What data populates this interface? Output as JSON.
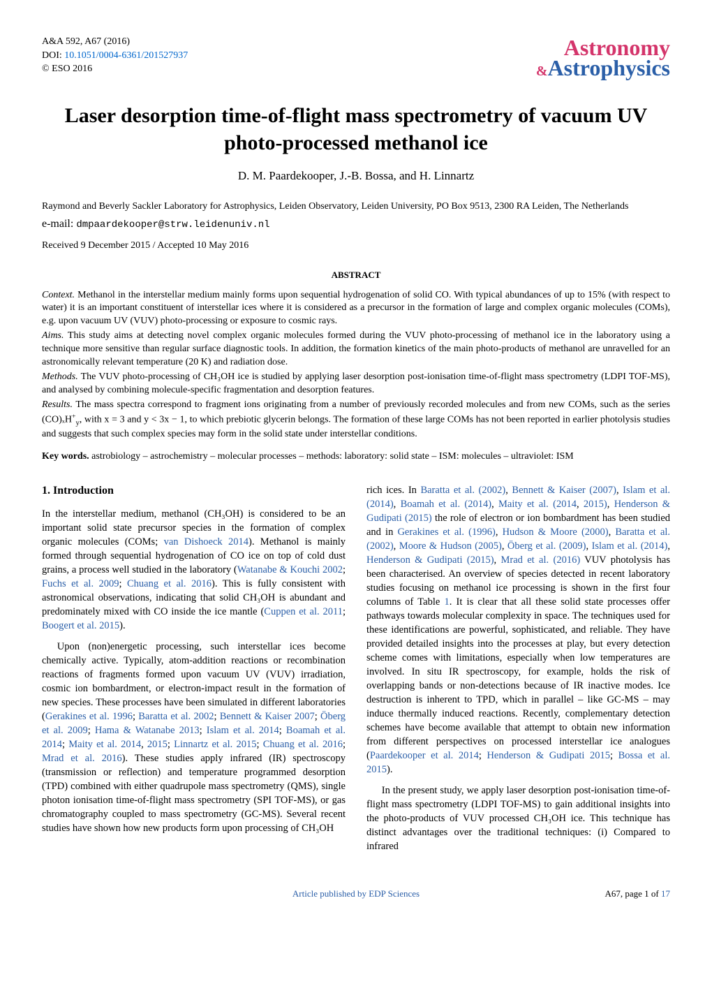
{
  "meta": {
    "journal_ref": "A&A 592, A67 (2016)",
    "doi_label": "DOI:",
    "doi_link_text": "10.1051/0004-6361/201527937",
    "copyright": "© ESO 2016"
  },
  "logo": {
    "line1": "Astronomy",
    "amp": "&",
    "line2": "Astrophysics",
    "color_top": "#d4356b",
    "color_bottom": "#2b5fa8"
  },
  "title": "Laser desorption time-of-flight mass spectrometry of vacuum UV photo-processed methanol ice",
  "authors": "D. M. Paardekooper, J.-B. Bossa, and H. Linnartz",
  "affiliation": "Raymond and Beverly Sackler Laboratory for Astrophysics, Leiden Observatory, Leiden University, PO Box 9513, 2300 RA Leiden, The Netherlands",
  "email_label": "e-mail:",
  "email": "dmpaardekooper@strw.leidenuniv.nl",
  "dates": "Received 9 December 2015 / Accepted 10 May 2016",
  "abstract": {
    "heading": "ABSTRACT",
    "context_label": "Context.",
    "context": "Methanol in the interstellar medium mainly forms upon sequential hydrogenation of solid CO. With typical abundances of up to 15% (with respect to water) it is an important constituent of interstellar ices where it is considered as a precursor in the formation of large and complex organic molecules (COMs), e.g. upon vacuum UV (VUV) photo-processing or exposure to cosmic rays.",
    "aims_label": "Aims.",
    "aims": "This study aims at detecting novel complex organic molecules formed during the VUV photo-processing of methanol ice in the laboratory using a technique more sensitive than regular surface diagnostic tools. In addition, the formation kinetics of the main photo-products of methanol are unravelled for an astronomically relevant temperature (20 K) and radiation dose.",
    "methods_label": "Methods.",
    "methods": "The VUV photo-processing of CH₃OH ice is studied by applying laser desorption post-ionisation time-of-flight mass spectrometry (LDPI TOF-MS), and analysed by combining molecule-specific fragmentation and desorption features.",
    "results_label": "Results.",
    "results_pre": "The mass spectra correspond to fragment ions originating from a number of previously recorded molecules and from new COMs, such as the series (CO)ₓH",
    "results_mid": ", with x = 3 and y < 3x − 1, to which prebiotic glycerin belongs. The formation of these large COMs has not been reported in earlier photolysis studies and suggests that such complex species may form in the solid state under interstellar conditions."
  },
  "keywords": {
    "label": "Key words.",
    "text": "astrobiology – astrochemistry – molecular processes – methods: laboratory: solid state – ISM: molecules – ultraviolet: ISM"
  },
  "section1_heading": "1. Introduction",
  "col1_p1_parts": {
    "a": "In the interstellar medium, methanol (CH₃OH) is considered to be an important solid state precursor species in the formation of complex organic molecules (COMs; ",
    "c1": "van Dishoeck 2014",
    "b": "). Methanol is mainly formed through sequential hydrogenation of CO ice on top of cold dust grains, a process well studied in the laboratory (",
    "c2": "Watanabe & Kouchi 2002",
    "sep2": "; ",
    "c3": "Fuchs et al. 2009",
    "sep3": "; ",
    "c4": "Chuang et al. 2016",
    "c": "). This is fully consistent with astronomical observations, indicating that solid CH₃OH is abundant and predominately mixed with CO inside the ice mantle (",
    "c5": "Cuppen et al. 2011",
    "sep5": "; ",
    "c6": "Boogert et al. 2015",
    "d": ")."
  },
  "col1_p2_parts": {
    "a": "Upon (non)energetic processing, such interstellar ices become chemically active. Typically, atom-addition reactions or recombination reactions of fragments formed upon vacuum UV (VUV) irradiation, cosmic ion bombardment, or electron-impact result in the formation of new species. These processes have been simulated in different laboratories (",
    "c1": "Gerakines et al. 1996",
    "s1": "; ",
    "c2": "Baratta et al. 2002",
    "s2": "; ",
    "c3": "Bennett & Kaiser 2007",
    "s3": "; ",
    "c4": "Öberg et al. 2009",
    "s4": "; ",
    "c5": "Hama & Watanabe 2013",
    "s5": "; ",
    "c6": "Islam et al. 2014",
    "s6": "; ",
    "c7": "Boamah et al. 2014",
    "s7": "; ",
    "c8": "Maity et al. 2014",
    "s8": ", ",
    "c9": "2015",
    "s9": "; ",
    "c10": "Linnartz et al. 2015",
    "s10": "; ",
    "c11": "Chuang et al. 2016",
    "s11": "; ",
    "c12": "Mrad et al. 2016",
    "b": "). These studies apply infrared (IR) spectroscopy (transmission or reflection) and temperature programmed desorption (TPD) combined with either quadrupole mass spectrometry (QMS), single photon ionisation time-of-flight mass spectrometry (SPI TOF-MS), or gas chromatography coupled to mass spectrometry (GC-MS). Several recent studies have shown how new products form upon processing of CH₃OH"
  },
  "col2_p1_parts": {
    "a": "rich ices. In ",
    "c1": "Baratta et al.",
    "y1": "(2002)",
    "s1": ", ",
    "c2": "Bennett & Kaiser",
    "y2": "(2007)",
    "s2": ", ",
    "c3": "Islam et al.",
    "y3": "(2014)",
    "s3": ", ",
    "c4": "Boamah et al.",
    "y4": "(2014)",
    "s4": ", ",
    "c5": "Maity et al.",
    "y5": "(2014",
    "s5y": ", ",
    "y5b": "2015)",
    "s5": ", ",
    "c6": "Henderson & Gudipati",
    "y6": "(2015)",
    "b": " the role of electron or ion bombardment has been studied and in ",
    "c7": "Gerakines et al.",
    "y7": "(1996)",
    "s7": ", ",
    "c8": "Hudson & Moore",
    "y8": "(2000)",
    "s8": ", ",
    "c9": "Baratta et al.",
    "y9": "(2002)",
    "s9": ", ",
    "c10": "Moore & Hudson",
    "y10": "(2005)",
    "s10": ", ",
    "c11": "Öberg et al.",
    "y11": "(2009)",
    "s11": ", ",
    "c12": "Islam et al.",
    "y12": "(2014)",
    "s12": ", ",
    "c13": "Henderson & Gudipati",
    "y13": "(2015)",
    "s13": ", ",
    "c14": "Mrad et al.",
    "y14": "(2016)",
    "c": " VUV photolysis has been characterised. An overview of species detected in recent laboratory studies focusing on methanol ice processing is shown in the first four columns of Table ",
    "tabref": "1",
    "d": ". It is clear that all these solid state processes offer pathways towards molecular complexity in space. The techniques used for these identifications are powerful, sophisticated, and reliable. They have provided detailed insights into the processes at play, but every detection scheme comes with limitations, especially when low temperatures are involved. In situ IR spectroscopy, for example, holds the risk of overlapping bands or non-detections because of IR inactive modes. Ice destruction is inherent to TPD, which in parallel – like GC-MS – may induce thermally induced reactions. Recently, complementary detection schemes have become available that attempt to obtain new information from different perspectives on processed interstellar ice analogues (",
    "c15": "Paardekooper et al. 2014",
    "s15": "; ",
    "c16": "Henderson & Gudipati 2015",
    "s16": "; ",
    "c17": "Bossa et al. 2015",
    "e": ")."
  },
  "col2_p2": "In the present study, we apply laser desorption post-ionisation time-of-flight mass spectrometry (LDPI TOF-MS) to gain additional insights into the photo-products of VUV processed CH₃OH ice. This technique has distinct advantages over the traditional techniques: (i) Compared to infrared",
  "footer": {
    "center": "Article published by EDP Sciences",
    "right": "A67, page 1 of ",
    "pages": "17"
  }
}
